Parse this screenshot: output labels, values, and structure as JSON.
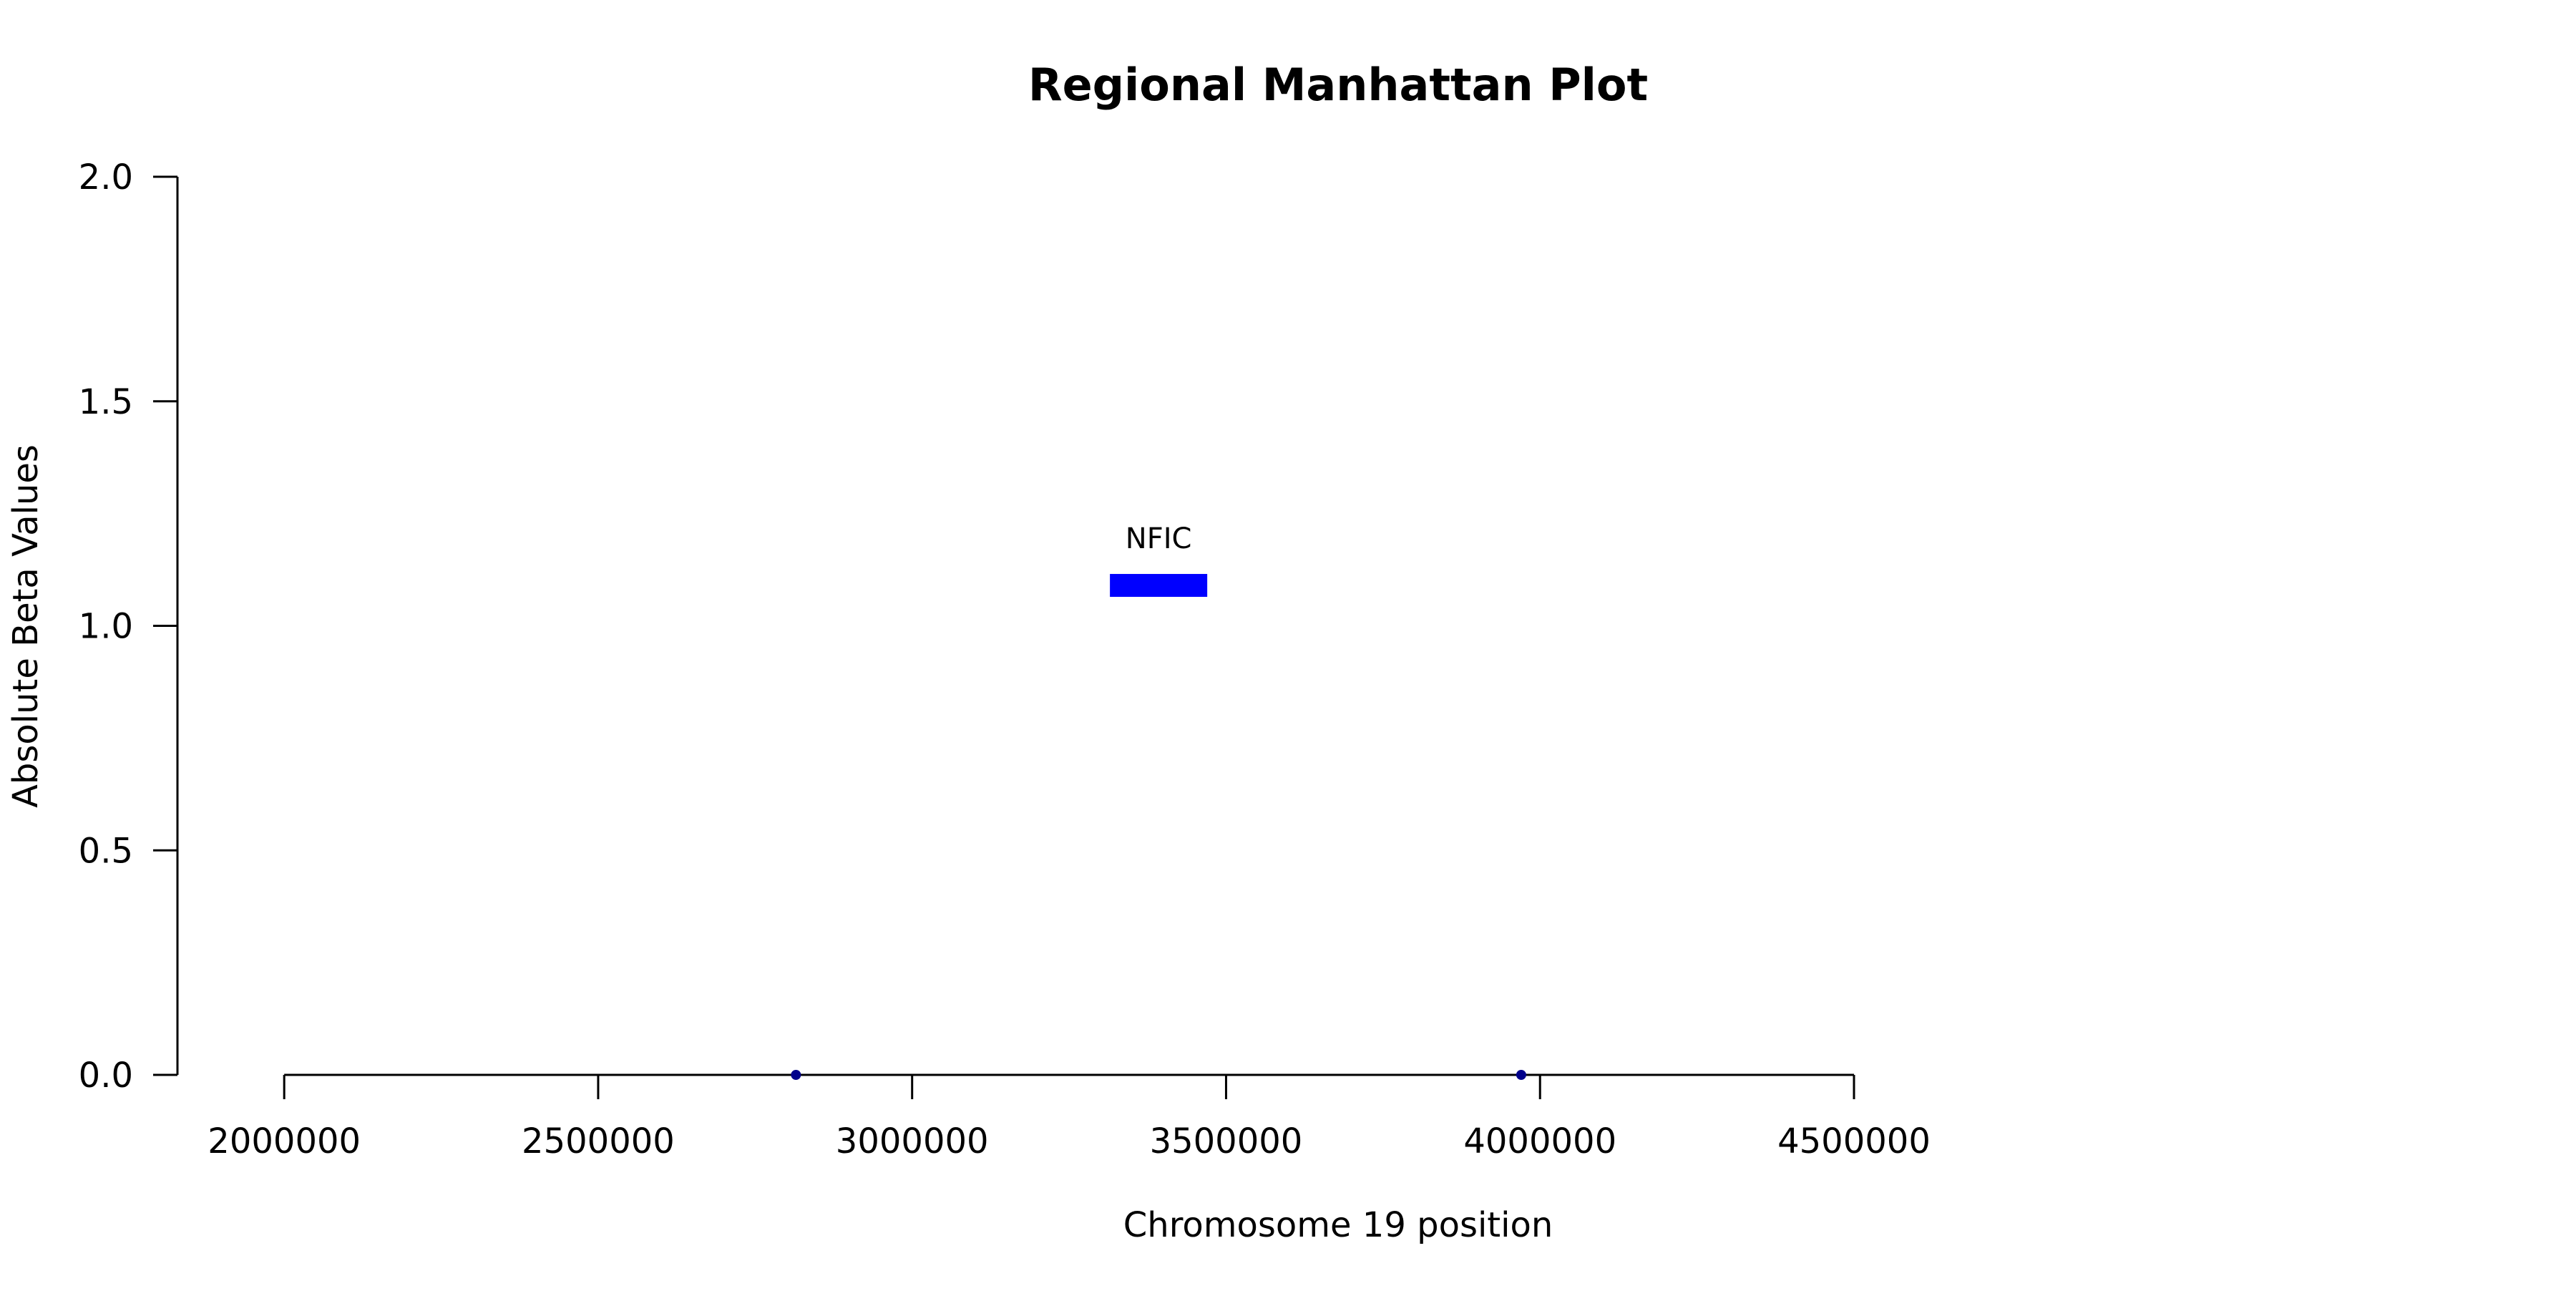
{
  "chart_data": {
    "type": "scatter",
    "title": "Regional Manhattan Plot",
    "xlabel": "Chromosome 19 position",
    "ylabel": "Absolute Beta Values",
    "xlim": [
      1830000,
      5300000
    ],
    "ylim": [
      0,
      2.0
    ],
    "x_ticks": [
      2000000,
      2500000,
      3000000,
      3500000,
      4000000,
      4500000
    ],
    "x_tick_labels": [
      "2000000",
      "2500000",
      "3000000",
      "3500000",
      "4000000",
      "4500000"
    ],
    "y_ticks": [
      0.0,
      0.5,
      1.0,
      1.5,
      2.0
    ],
    "y_tick_labels": [
      "0.0",
      "0.5",
      "1.0",
      "1.5",
      "2.0"
    ],
    "grid": false,
    "points": [
      {
        "x": 2815000,
        "y": 0.0
      },
      {
        "x": 3970000,
        "y": 0.0
      }
    ],
    "genes": [
      {
        "name": "NFIC",
        "start": 3315000,
        "end": 3470000,
        "y": 1.09
      }
    ],
    "colors": {
      "point": "#00008b",
      "gene": "#0000ff",
      "axis": "#000000"
    }
  }
}
